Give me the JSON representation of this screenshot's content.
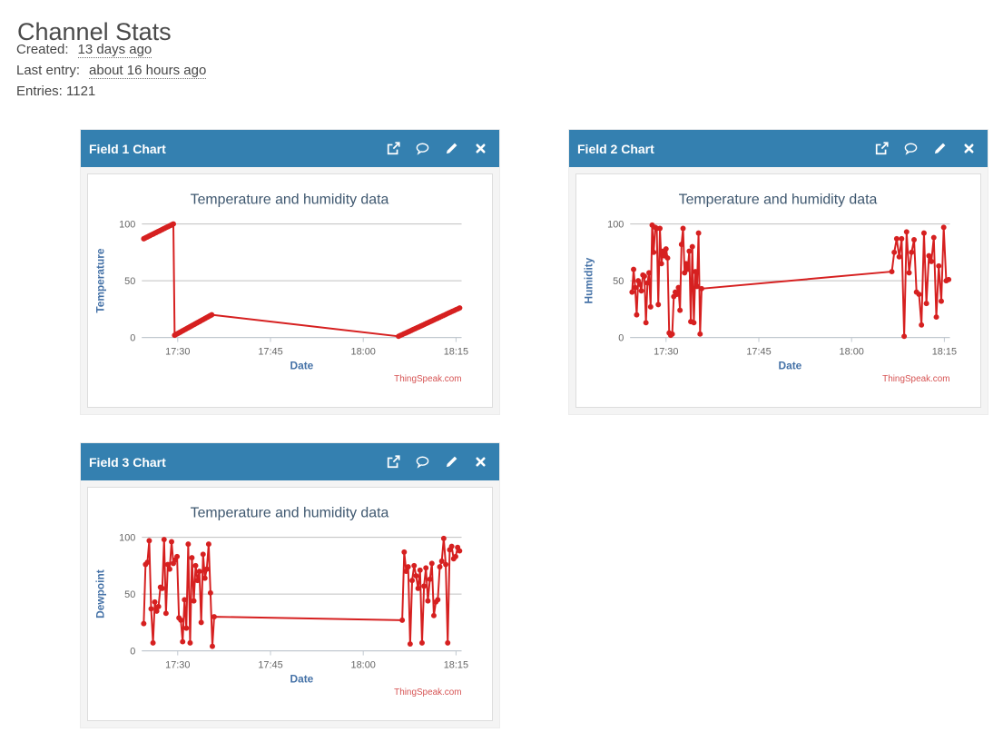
{
  "page": {
    "title": "Channel Stats",
    "created_label": "Created:",
    "created_value": "13 days ago",
    "last_entry_label": "Last entry:",
    "last_entry_value": "about 16 hours ago",
    "entries_text": "Entries: 1121"
  },
  "colors": {
    "header_bg": "#3480b0",
    "line": "#d62020",
    "chart_title": "#3e576f",
    "axis_title": "#4572a7",
    "tick_label": "#666666",
    "grid": "#c0c0c0",
    "axis": "#c0c8d0",
    "credit": "#d65353"
  },
  "panels": [
    {
      "title": "Field 1 Chart",
      "header_icons": [
        "open-in-new-window",
        "comment",
        "edit",
        "close"
      ]
    },
    {
      "title": "Field 2 Chart",
      "header_icons": [
        "open-in-new-window",
        "comment",
        "edit",
        "close"
      ]
    },
    {
      "title": "Field 3 Chart",
      "header_icons": [
        "open-in-new-window",
        "comment",
        "edit",
        "close"
      ]
    }
  ],
  "chart_data": [
    {
      "type": "line",
      "title": "Temperature and humidity data",
      "xlabel": "Date",
      "ylabel": "Temperature",
      "credit": "ThingSpeak.com",
      "x_unit": "minutes after 17:00",
      "x_range": [
        24.2,
        75.9
      ],
      "y_range": [
        0,
        100
      ],
      "y_ticks": [
        0,
        50,
        100
      ],
      "x_ticks": [
        {
          "v": 30,
          "label": "17:30"
        },
        {
          "v": 45,
          "label": "17:45"
        },
        {
          "v": 60,
          "label": "18:00"
        },
        {
          "v": 75,
          "label": "18:15"
        }
      ],
      "grid": true,
      "legend": false,
      "segments": [
        {
          "x0": 24.5,
          "dx": 0.2,
          "values": [
            87,
            87.5,
            88.1,
            88.6,
            89.2,
            89.7,
            90.3,
            90.8,
            91.3,
            91.9,
            92.4,
            93,
            93.5,
            94,
            94.6,
            95.1,
            95.7,
            96.2,
            96.8,
            97.3,
            97.8,
            98.4,
            98.9,
            99.5,
            100
          ]
        },
        {
          "x0": 29.5,
          "dx": 0.2,
          "values": [
            2,
            2.6,
            3.2,
            3.8,
            4.4,
            5,
            5.6,
            6.2,
            6.8,
            7.4,
            8,
            8.6,
            9.2,
            9.8,
            10.4,
            11,
            11.6,
            12.2,
            12.8,
            13.4,
            14,
            14.6,
            15.2,
            15.8,
            16.4,
            17,
            17.6,
            18.2,
            18.8,
            19.4,
            20
          ]
        },
        {
          "x0": 65.7,
          "dx": 0.3,
          "values": [
            1,
            1.8,
            2.5,
            3.3,
            4,
            4.8,
            5.5,
            6.3,
            7.1,
            7.8,
            8.6,
            9.3,
            10.1,
            10.8,
            11.6,
            12.4,
            13.1,
            13.9,
            14.6,
            15.4,
            16.2,
            16.9,
            17.7,
            18.4,
            19.2,
            19.9,
            20.7,
            21.5,
            22.2,
            23,
            23.7,
            24.5,
            25.2,
            26
          ]
        }
      ]
    },
    {
      "type": "line",
      "title": "Temperature and humidity data",
      "xlabel": "Date",
      "ylabel": "Humidity",
      "credit": "ThingSpeak.com",
      "x_unit": "minutes after 17:00",
      "x_range": [
        24.2,
        75.9
      ],
      "y_range": [
        0,
        100
      ],
      "y_ticks": [
        0,
        50,
        100
      ],
      "x_ticks": [
        {
          "v": 30,
          "label": "17:30"
        },
        {
          "v": 45,
          "label": "17:45"
        },
        {
          "v": 60,
          "label": "18:00"
        },
        {
          "v": 75,
          "label": "18:15"
        }
      ],
      "grid": true,
      "legend": false,
      "segments": [
        {
          "x0": 24.5,
          "dx": 0.25,
          "values": [
            40,
            60,
            44,
            20,
            50,
            47,
            41,
            55,
            54,
            13,
            48,
            57,
            27,
            99,
            75,
            97,
            96,
            29,
            96,
            65,
            76,
            72,
            78,
            70,
            4,
            2,
            3,
            36,
            40,
            38,
            44,
            24,
            82,
            96,
            57,
            65,
            60,
            76,
            14,
            80,
            13,
            58,
            45,
            92,
            3,
            43
          ]
        },
        {
          "x0": 66.5,
          "dx": 0.4,
          "values": [
            58,
            75,
            87,
            71,
            87,
            1,
            93,
            57,
            75,
            86,
            40,
            38,
            11,
            92,
            30,
            72,
            67,
            88,
            18,
            63,
            32,
            97,
            50,
            51
          ]
        }
      ]
    },
    {
      "type": "line",
      "title": "Temperature and humidity data",
      "xlabel": "Date",
      "ylabel": "Dewpoint",
      "credit": "ThingSpeak.com",
      "x_unit": "minutes after 17:00",
      "x_range": [
        24.2,
        75.9
      ],
      "y_range": [
        0,
        100
      ],
      "y_ticks": [
        0,
        50,
        100
      ],
      "x_ticks": [
        {
          "v": 30,
          "label": "17:30"
        },
        {
          "v": 45,
          "label": "17:45"
        },
        {
          "v": 60,
          "label": "18:00"
        },
        {
          "v": 75,
          "label": "18:15"
        }
      ],
      "grid": true,
      "legend": false,
      "segments": [
        {
          "x0": 24.5,
          "dx": 0.3,
          "values": [
            24,
            76,
            78,
            97,
            37,
            7,
            43,
            35,
            39,
            56,
            55,
            98,
            33,
            76,
            72,
            96,
            77,
            80,
            83,
            29,
            27,
            8,
            45,
            20,
            94,
            7,
            82,
            44,
            75,
            62,
            70,
            25,
            85,
            64,
            72,
            94,
            51,
            4,
            30
          ]
        },
        {
          "x0": 66.3,
          "dx": 0.32,
          "values": [
            27,
            87,
            70,
            74,
            6,
            62,
            75,
            66,
            55,
            71,
            7,
            57,
            73,
            44,
            63,
            77,
            31,
            43,
            45,
            74,
            79,
            99,
            76,
            7,
            89,
            92,
            81,
            83,
            91,
            88
          ]
        }
      ]
    }
  ]
}
